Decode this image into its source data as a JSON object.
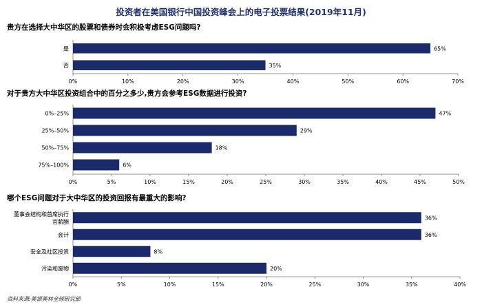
{
  "title": "投资者在美国银行中国投资峰会上的电子投票结果(2019年11月)",
  "source": "资料来源:美银美林全球研究部",
  "colors": {
    "bar": "#1b2a6b",
    "title": "#1f3270"
  },
  "chart_data": [
    {
      "type": "bar",
      "orientation": "horizontal",
      "title": "贵方在选择大中华区的股票和债券时会积极考虑ESG问题吗?",
      "categories": [
        [
          "是"
        ],
        [
          "否"
        ]
      ],
      "values": [
        65,
        35
      ],
      "data_labels": [
        "65%",
        "35%"
      ],
      "xlim": [
        0,
        70
      ],
      "xticks": [
        0,
        10,
        20,
        30,
        40,
        50,
        60,
        70
      ],
      "xtick_labels": [
        "0%",
        "10%",
        "20%",
        "30%",
        "40%",
        "50%",
        "60%",
        "70%"
      ]
    },
    {
      "type": "bar",
      "orientation": "horizontal",
      "title": "对于贵方大中华区投资组合中的百分之多少,贵方会参考ESG数据进行投资?",
      "categories": [
        [
          "0%–25%"
        ],
        [
          "25%–50%"
        ],
        [
          "50%–75%"
        ],
        [
          "75%–100%"
        ]
      ],
      "values": [
        47,
        29,
        18,
        6
      ],
      "data_labels": [
        "47%",
        "29%",
        "18%",
        "6%"
      ],
      "xlim": [
        0,
        50
      ],
      "xticks": [
        0,
        5,
        10,
        15,
        20,
        25,
        30,
        35,
        40,
        45,
        50
      ],
      "xtick_labels": [
        "0%",
        "5%",
        "10%",
        "15%",
        "20%",
        "25%",
        "30%",
        "35%",
        "40%",
        "45%",
        "50%"
      ]
    },
    {
      "type": "bar",
      "orientation": "horizontal",
      "title": "哪个ESG问题对于大中华区的投资回报有最重大的影响?",
      "categories": [
        [
          "董事会结构和首席执行",
          "官薪酬"
        ],
        [
          "会计"
        ],
        [
          "安全及社区投资"
        ],
        [
          "污染和废物"
        ]
      ],
      "values": [
        36,
        36,
        8,
        20
      ],
      "data_labels": [
        "36%",
        "36%",
        "8%",
        "20%"
      ],
      "xlim": [
        0,
        40
      ],
      "xticks": [
        0,
        5,
        10,
        15,
        20,
        25,
        30,
        35,
        40
      ],
      "xtick_labels": [
        "0%",
        "5%",
        "10%",
        "15%",
        "20%",
        "25%",
        "30%",
        "35%",
        "40%"
      ]
    }
  ]
}
